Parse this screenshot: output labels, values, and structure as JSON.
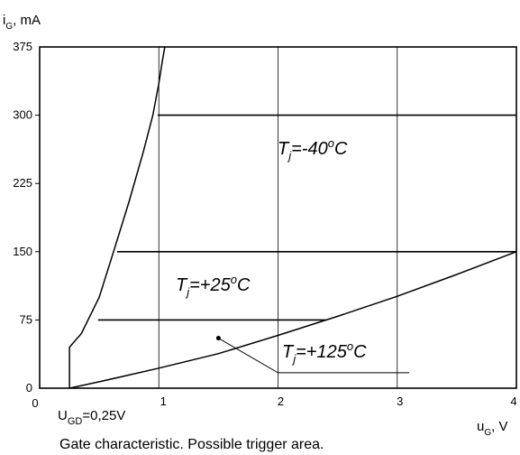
{
  "chart_data": {
    "type": "line",
    "title": "",
    "caption": "Gate characteristic. Possible trigger area.",
    "ylabel": {
      "main": "i",
      "sub": "G",
      "rest": ", mA"
    },
    "xlabel": {
      "main": "u",
      "sub": "G",
      "rest": ", V"
    },
    "xlim": [
      0,
      4
    ],
    "ylim": [
      0,
      375
    ],
    "x_ticks": [
      {
        "value": 0,
        "label": "0"
      },
      {
        "value": 1,
        "label": "1"
      },
      {
        "value": 2,
        "label": "2"
      },
      {
        "value": 3,
        "label": "3"
      },
      {
        "value": 4,
        "label": "4"
      }
    ],
    "y_ticks": [
      {
        "value": 0,
        "label": "0"
      },
      {
        "value": 75,
        "label": "75"
      },
      {
        "value": 150,
        "label": "150"
      },
      {
        "value": 225,
        "label": "225"
      },
      {
        "value": 300,
        "label": "300"
      },
      {
        "value": 375,
        "label": "375"
      }
    ],
    "grid": true,
    "vertical_grid": [
      1,
      2,
      3
    ],
    "threshold_lines": [
      {
        "label_main": "T",
        "label_sub": "j",
        "label_rest": "=-40",
        "label_sup": "o",
        "label_unit": "C",
        "y": 300,
        "x_range": [
          0.99,
          4
        ]
      },
      {
        "label_main": "T",
        "label_sub": "j",
        "label_rest": "=+25",
        "label_sup": "o",
        "label_unit": "C",
        "y": 150,
        "x_range": [
          0.65,
          4
        ]
      },
      {
        "label_main": "T",
        "label_sub": "j",
        "label_rest": "=+125",
        "label_sup": "o",
        "label_unit": "C",
        "y": 75,
        "x_range": [
          0.49,
          2.4
        ]
      }
    ],
    "series": [
      {
        "x": [
          0.25,
          0.25,
          0.35,
          0.5,
          0.62,
          0.75,
          0.87,
          0.95,
          1.0,
          1.03,
          1.05
        ],
        "y": [
          0,
          45,
          60,
          100,
          150,
          205,
          260,
          300,
          335,
          360,
          375
        ]
      },
      {
        "x": [
          0.25,
          0.5,
          1.0,
          1.5,
          2.0,
          2.5,
          3.0,
          3.5,
          4.0
        ],
        "y": [
          0,
          7,
          22,
          38,
          58,
          79,
          101,
          125,
          150
        ]
      }
    ],
    "vgd": {
      "x": 0.25,
      "label_main": "U",
      "label_sub": "GD",
      "label_rest": "=0,25V"
    },
    "pointer": {
      "dot": [
        1.5,
        55
      ],
      "knee": [
        2.0,
        17
      ],
      "end": [
        3.1,
        17
      ]
    },
    "colors": {
      "line": "#000000",
      "background": "#ffffff"
    }
  }
}
